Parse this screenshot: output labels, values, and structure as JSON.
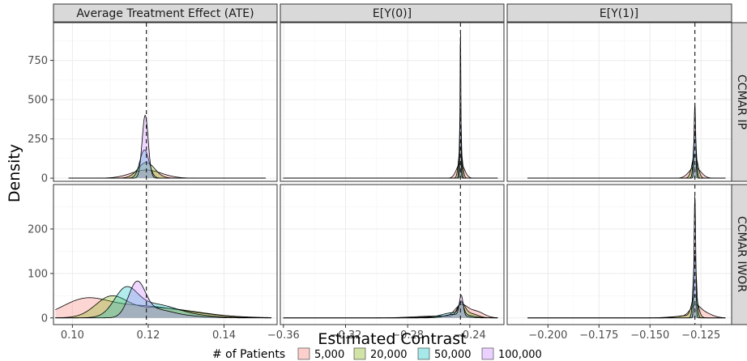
{
  "chart_data": {
    "type": "area",
    "ylabel": "Density",
    "xlabel": "Estimated Contrast",
    "column_strips": [
      "Average Treatment Effect (ATE)",
      "E[Y(0)]",
      "E[Y(1)]"
    ],
    "row_strips": [
      "CCMAR IP",
      "CCMAR IWOR"
    ],
    "legend": {
      "title": "# of Patients",
      "position": "bottom",
      "items": [
        {
          "label": "5,000",
          "color": "#F8766D"
        },
        {
          "label": "20,000",
          "color": "#7CAE00"
        },
        {
          "label": "50,000",
          "color": "#00BFC4"
        },
        {
          "label": "100,000",
          "color": "#C77CFF"
        }
      ]
    },
    "columns": [
      {
        "xlim": [
          0.095,
          0.154
        ],
        "ticks": [
          0.1,
          0.12,
          0.14
        ],
        "tick_labels": [
          "0.10",
          "0.12",
          "0.14"
        ],
        "true_value": 0.1195
      },
      {
        "xlim": [
          -0.362,
          -0.218
        ],
        "ticks": [
          -0.36,
          -0.32,
          -0.28,
          -0.24
        ],
        "tick_labels": [
          "−0.36",
          "−0.32",
          "−0.28",
          "−0.24"
        ],
        "true_value": -0.246
      },
      {
        "xlim": [
          -0.22,
          -0.11
        ],
        "ticks": [
          -0.2,
          -0.175,
          -0.15,
          -0.125
        ],
        "tick_labels": [
          "−0.200",
          "−0.175",
          "−0.150",
          "−0.125"
        ],
        "true_value": -0.128
      }
    ],
    "rows": [
      {
        "ylim": [
          -20,
          990
        ],
        "ticks": [
          0,
          250,
          500,
          750
        ],
        "tick_labels": [
          "0",
          "250",
          "500",
          "750"
        ]
      },
      {
        "ylim": [
          -15,
          300
        ],
        "ticks": [
          0,
          100,
          200
        ],
        "tick_labels": [
          "0",
          "100",
          "200"
        ]
      }
    ],
    "panels": [
      {
        "row": 0,
        "col": 0,
        "curve_range": [
          0.099,
          0.151
        ],
        "series": [
          {
            "name": "5,000",
            "peaks": [
              [
                0.1195,
                0.004,
                52
              ]
            ]
          },
          {
            "name": "20,000",
            "peaks": [
              [
                0.1195,
                0.0022,
                100
              ]
            ]
          },
          {
            "name": "50,000",
            "peaks": [
              [
                0.119,
                0.0012,
                180
              ]
            ]
          },
          {
            "name": "100,000",
            "peaks": [
              [
                0.1192,
                0.0008,
                400
              ]
            ]
          }
        ]
      },
      {
        "row": 0,
        "col": 1,
        "curve_range": [
          -0.36,
          -0.222
        ],
        "series": [
          {
            "name": "5,000",
            "peaks": [
              [
                -0.246,
                0.0025,
                95
              ]
            ]
          },
          {
            "name": "20,000",
            "peaks": [
              [
                -0.246,
                0.0012,
                200
              ]
            ]
          },
          {
            "name": "50,000",
            "peaks": [
              [
                -0.246,
                0.0006,
                450
              ]
            ]
          },
          {
            "name": "100,000",
            "peaks": [
              [
                -0.246,
                0.00028,
                960
              ]
            ]
          }
        ]
      },
      {
        "row": 0,
        "col": 2,
        "curve_range": [
          -0.21,
          -0.113
        ],
        "series": [
          {
            "name": "5,000",
            "peaks": [
              [
                -0.128,
                0.0028,
                70
              ]
            ]
          },
          {
            "name": "20,000",
            "peaks": [
              [
                -0.128,
                0.0014,
                150
              ]
            ]
          },
          {
            "name": "50,000",
            "peaks": [
              [
                -0.128,
                0.0007,
                300
              ]
            ]
          },
          {
            "name": "100,000",
            "peaks": [
              [
                -0.128,
                0.0004,
                470
              ]
            ]
          }
        ]
      },
      {
        "row": 1,
        "col": 0,
        "curve_range": [
          0.0955,
          0.1525
        ],
        "series": [
          {
            "name": "5,000",
            "peaks": [
              [
                0.103,
                0.006,
                35
              ],
              [
                0.117,
                0.01,
                25
              ],
              [
                0.132,
                0.01,
                5
              ]
            ]
          },
          {
            "name": "20,000",
            "peaks": [
              [
                0.11,
                0.004,
                40
              ],
              [
                0.12,
                0.008,
                20
              ],
              [
                0.132,
                0.008,
                8
              ]
            ]
          },
          {
            "name": "50,000",
            "peaks": [
              [
                0.114,
                0.003,
                55
              ],
              [
                0.121,
                0.006,
                28
              ],
              [
                0.13,
                0.008,
                5
              ]
            ]
          },
          {
            "name": "100,000",
            "peaks": [
              [
                0.117,
                0.0022,
                75
              ],
              [
                0.122,
                0.004,
                15
              ],
              [
                0.128,
                0.006,
                5
              ]
            ]
          }
        ]
      },
      {
        "row": 1,
        "col": 1,
        "curve_range": [
          -0.36,
          -0.222
        ],
        "series": [
          {
            "name": "5,000",
            "peaks": [
              [
                -0.2455,
                0.004,
                26
              ],
              [
                -0.236,
                0.005,
                14
              ],
              [
                -0.262,
                0.014,
                4
              ]
            ]
          },
          {
            "name": "20,000",
            "peaks": [
              [
                -0.2455,
                0.0025,
                30
              ],
              [
                -0.239,
                0.004,
                8
              ],
              [
                -0.255,
                0.012,
                4
              ]
            ]
          },
          {
            "name": "50,000",
            "peaks": [
              [
                -0.2455,
                0.0015,
                28
              ],
              [
                -0.25,
                0.008,
                12
              ]
            ]
          },
          {
            "name": "100,000",
            "peaks": [
              [
                -0.2455,
                0.0012,
                45
              ],
              [
                -0.25,
                0.006,
                8
              ]
            ]
          }
        ]
      },
      {
        "row": 1,
        "col": 2,
        "curve_range": [
          -0.21,
          -0.113
        ],
        "series": [
          {
            "name": "5,000",
            "peaks": [
              [
                -0.128,
                0.0025,
                20
              ],
              [
                -0.124,
                0.004,
                12
              ],
              [
                -0.135,
                0.006,
                3
              ]
            ]
          },
          {
            "name": "20,000",
            "peaks": [
              [
                -0.128,
                0.0015,
                50
              ],
              [
                -0.133,
                0.004,
                5
              ]
            ]
          },
          {
            "name": "50,000",
            "peaks": [
              [
                -0.128,
                0.0008,
                140
              ]
            ]
          },
          {
            "name": "100,000",
            "peaks": [
              [
                -0.128,
                0.0004,
                275
              ]
            ]
          }
        ]
      }
    ]
  }
}
